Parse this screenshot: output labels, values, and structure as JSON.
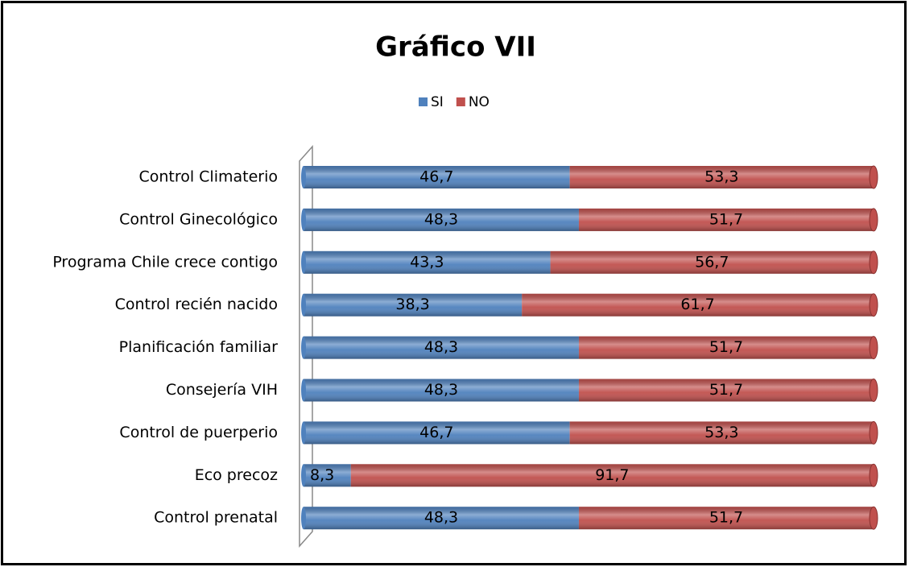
{
  "chart_data": {
    "type": "stacked-bar-horizontal",
    "title": "Gráfico VII",
    "categories": [
      "Control Climaterio",
      "Control Ginecológico",
      "Programa Chile crece contigo",
      "Control recién nacido",
      "Planificación familiar",
      "Consejería VIH",
      "Control de puerperio",
      "Eco precoz",
      "Control prenatal"
    ],
    "series": [
      {
        "name": "SI",
        "color": "#4f81bd",
        "values": [
          46.7,
          48.3,
          43.3,
          38.3,
          48.3,
          48.3,
          46.7,
          8.3,
          48.3
        ],
        "value_labels": [
          "46,7",
          "48,3",
          "43,3",
          "38,3",
          "48,3",
          "48,3",
          "46,7",
          "8,3",
          "48,3"
        ]
      },
      {
        "name": "NO",
        "color": "#c0504d",
        "values": [
          53.3,
          51.7,
          56.7,
          61.7,
          51.7,
          51.7,
          53.3,
          91.7,
          51.7
        ],
        "value_labels": [
          "53,3",
          "51,7",
          "56,7",
          "61,7",
          "51,7",
          "51,7",
          "53,3",
          "91,7",
          "51,7"
        ]
      }
    ],
    "legend": "top"
  }
}
